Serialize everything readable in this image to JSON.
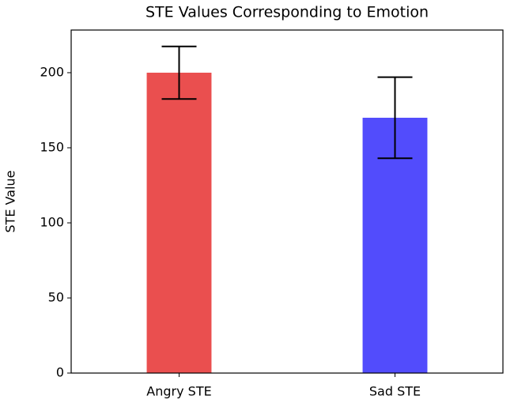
{
  "chart_data": {
    "type": "bar",
    "title": "STE Values Corresponding to Emotion",
    "y_label": "STE Value",
    "categories": [
      "Angry STE",
      "Sad STE"
    ],
    "values": [
      200,
      170
    ],
    "errors": [
      17.5,
      27
    ],
    "colors": [
      "#ea4f4f",
      "#524cfc"
    ],
    "ylim": [
      0,
      228.4
    ],
    "yticks": [
      0,
      50,
      100,
      150,
      200
    ],
    "xlim": [
      -0.5,
      1.5
    ],
    "bar_width": 0.3,
    "grid": false
  }
}
